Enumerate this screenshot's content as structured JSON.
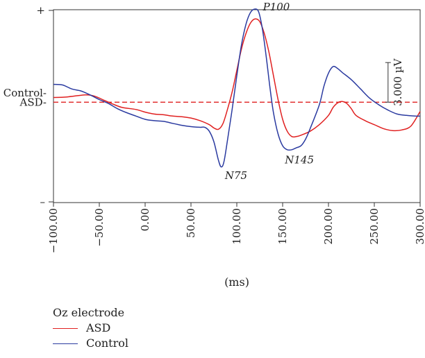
{
  "chart_data": {
    "type": "line",
    "xlabel": "(ms)",
    "xlim": [
      -100,
      300
    ],
    "ylim": [
      -7.6,
      7.0
    ],
    "x_ticks": [
      "-100.00",
      "-50.00",
      "0.00",
      "50.00",
      "100.00",
      "150.00",
      "200.00",
      "250.00",
      "300.00"
    ],
    "x_tick_values": [
      -100,
      -50,
      0,
      50,
      100,
      150,
      200,
      250,
      300
    ],
    "y_top_label": "+",
    "y_bottom_label": "–",
    "baseline_labels": [
      {
        "text": "Control-",
        "value": 0.7
      },
      {
        "text": "ASD-",
        "value": 0.0
      }
    ],
    "scale_bar": {
      "label": "3.000 µV",
      "value": 3.0,
      "x": 265,
      "y_from": 0.0,
      "y_to": 3.0
    },
    "reference_line": {
      "value": 0.0,
      "style": "dashed",
      "color": "#e02020"
    },
    "annotations": [
      {
        "text": "P100",
        "x": 127,
        "y": 6.95
      },
      {
        "text": "N75",
        "x": 84,
        "y": -5.4
      },
      {
        "text": "N145",
        "x": 154,
        "y": -4.0
      }
    ],
    "legend": {
      "title": "Oz electrode",
      "position": "bottom-left"
    },
    "series": [
      {
        "name": "ASD",
        "color": "#e02020",
        "points": [
          [
            -100,
            0.35
          ],
          [
            -85,
            0.4
          ],
          [
            -65,
            0.55
          ],
          [
            -55,
            0.45
          ],
          [
            -45,
            0.15
          ],
          [
            -35,
            -0.15
          ],
          [
            -25,
            -0.4
          ],
          [
            -10,
            -0.55
          ],
          [
            0,
            -0.75
          ],
          [
            10,
            -0.9
          ],
          [
            20,
            -0.95
          ],
          [
            30,
            -1.05
          ],
          [
            40,
            -1.1
          ],
          [
            50,
            -1.2
          ],
          [
            60,
            -1.4
          ],
          [
            70,
            -1.7
          ],
          [
            75,
            -1.95
          ],
          [
            80,
            -2.05
          ],
          [
            85,
            -1.6
          ],
          [
            90,
            -0.5
          ],
          [
            95,
            0.8
          ],
          [
            100,
            2.4
          ],
          [
            105,
            4.0
          ],
          [
            110,
            5.2
          ],
          [
            115,
            6.0
          ],
          [
            120,
            6.3
          ],
          [
            125,
            6.1
          ],
          [
            130,
            5.2
          ],
          [
            135,
            3.8
          ],
          [
            140,
            2.0
          ],
          [
            145,
            0.2
          ],
          [
            150,
            -1.3
          ],
          [
            155,
            -2.2
          ],
          [
            160,
            -2.6
          ],
          [
            165,
            -2.6
          ],
          [
            170,
            -2.5
          ],
          [
            180,
            -2.2
          ],
          [
            190,
            -1.7
          ],
          [
            200,
            -1.0
          ],
          [
            205,
            -0.4
          ],
          [
            210,
            -0.05
          ],
          [
            215,
            0.05
          ],
          [
            220,
            -0.1
          ],
          [
            225,
            -0.5
          ],
          [
            230,
            -1.0
          ],
          [
            240,
            -1.4
          ],
          [
            250,
            -1.7
          ],
          [
            260,
            -2.0
          ],
          [
            270,
            -2.15
          ],
          [
            280,
            -2.1
          ],
          [
            290,
            -1.8
          ],
          [
            300,
            -0.7
          ]
        ]
      },
      {
        "name": "Control",
        "color": "#2a3aa0",
        "points": [
          [
            -100,
            1.35
          ],
          [
            -90,
            1.3
          ],
          [
            -80,
            1.0
          ],
          [
            -70,
            0.85
          ],
          [
            -60,
            0.55
          ],
          [
            -50,
            0.2
          ],
          [
            -40,
            -0.1
          ],
          [
            -30,
            -0.5
          ],
          [
            -20,
            -0.8
          ],
          [
            -10,
            -1.05
          ],
          [
            0,
            -1.3
          ],
          [
            10,
            -1.4
          ],
          [
            20,
            -1.45
          ],
          [
            30,
            -1.6
          ],
          [
            40,
            -1.75
          ],
          [
            50,
            -1.85
          ],
          [
            60,
            -1.9
          ],
          [
            65,
            -1.9
          ],
          [
            70,
            -2.2
          ],
          [
            75,
            -3.0
          ],
          [
            80,
            -4.4
          ],
          [
            83,
            -4.9
          ],
          [
            86,
            -4.5
          ],
          [
            90,
            -2.8
          ],
          [
            95,
            -0.5
          ],
          [
            100,
            2.0
          ],
          [
            105,
            4.3
          ],
          [
            110,
            5.9
          ],
          [
            115,
            6.8
          ],
          [
            120,
            7.05
          ],
          [
            124,
            6.8
          ],
          [
            128,
            5.5
          ],
          [
            132,
            3.5
          ],
          [
            136,
            1.2
          ],
          [
            140,
            -0.8
          ],
          [
            145,
            -2.4
          ],
          [
            150,
            -3.3
          ],
          [
            155,
            -3.6
          ],
          [
            160,
            -3.6
          ],
          [
            165,
            -3.45
          ],
          [
            170,
            -3.3
          ],
          [
            175,
            -2.8
          ],
          [
            180,
            -2.0
          ],
          [
            190,
            -0.2
          ],
          [
            195,
            1.2
          ],
          [
            200,
            2.2
          ],
          [
            205,
            2.7
          ],
          [
            210,
            2.55
          ],
          [
            215,
            2.25
          ],
          [
            225,
            1.7
          ],
          [
            235,
            1.0
          ],
          [
            245,
            0.3
          ],
          [
            255,
            -0.2
          ],
          [
            265,
            -0.6
          ],
          [
            275,
            -0.9
          ],
          [
            285,
            -1.0
          ],
          [
            295,
            -1.05
          ],
          [
            300,
            -1.05
          ]
        ]
      }
    ]
  }
}
